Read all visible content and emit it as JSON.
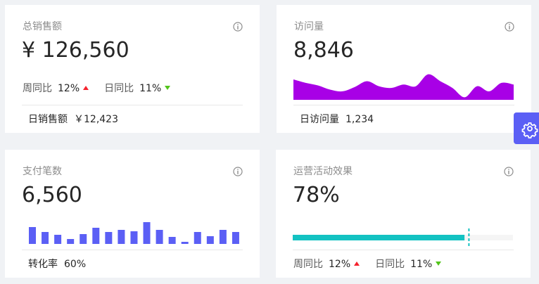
{
  "cards": [
    {
      "title": "总销售额",
      "value": "¥ 126,560",
      "trends": [
        {
          "label": "周同比",
          "value": "12%",
          "direction": "up"
        },
        {
          "label": "日同比",
          "value": "11%",
          "direction": "down"
        }
      ],
      "footer": {
        "label": "日销售额",
        "value": "￥12,423"
      }
    },
    {
      "title": "访问量",
      "value": "8,846",
      "chart": {
        "type": "area",
        "color": "#a800e6",
        "values": [
          24,
          20,
          17,
          12,
          10,
          15,
          22,
          16,
          14,
          18,
          16,
          30,
          22,
          14,
          3,
          16,
          10,
          20,
          18
        ]
      },
      "footer": {
        "label": "日访问量",
        "value": "1,234"
      }
    },
    {
      "title": "支付笔数",
      "value": "6,560",
      "chart": {
        "type": "bar",
        "color": "#5b5ff5",
        "values": [
          24,
          17,
          13,
          7,
          14,
          23,
          17,
          20,
          18,
          31,
          20,
          10,
          3,
          17,
          11,
          20,
          17
        ]
      },
      "footer": {
        "label": "转化率",
        "value": "60%"
      }
    },
    {
      "title": "运营活动效果",
      "value": {
        "value": 78,
        "label": "78%"
      },
      "chart": {
        "type": "progress",
        "color": "#13c2c2",
        "target": 80
      },
      "trends": [
        {
          "label": "周同比",
          "value": "12%",
          "direction": "up"
        },
        {
          "label": "日同比",
          "value": "11%",
          "direction": "down"
        }
      ]
    }
  ]
}
